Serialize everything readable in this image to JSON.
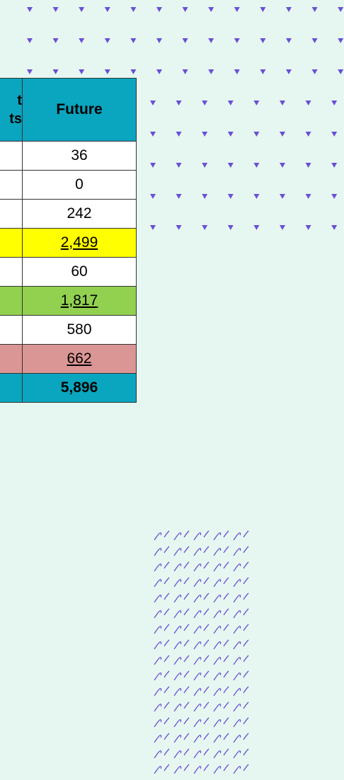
{
  "table": {
    "header_fragment": [
      "t",
      "ts"
    ],
    "header": "Future",
    "rows": [
      "36",
      "0",
      "242",
      "2,499",
      "60",
      "1,817",
      "580",
      "662",
      "5,896"
    ]
  }
}
